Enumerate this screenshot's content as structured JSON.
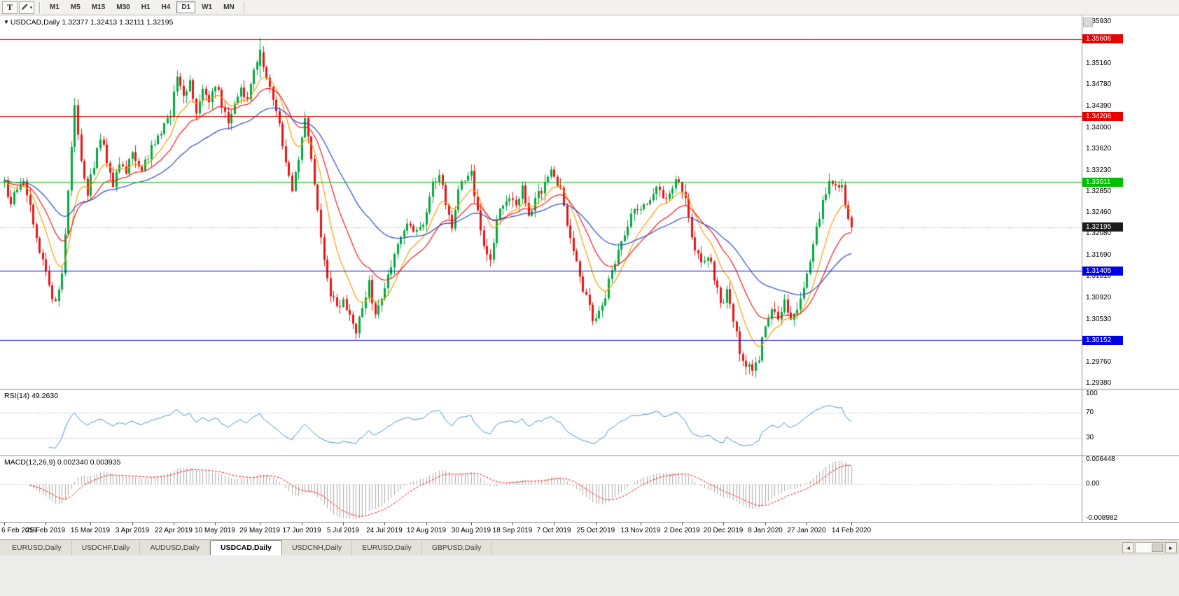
{
  "toolbar": {
    "text_tool_label": "T",
    "draw_tool_caret": "▾",
    "timeframes": [
      "M1",
      "M5",
      "M15",
      "M30",
      "H1",
      "H4",
      "D1",
      "W1",
      "MN"
    ],
    "active_timeframe": "D1"
  },
  "chart": {
    "collapse_arrow": "▼",
    "title": "USDCAD,Daily 1.32377 1.32413 1.32111 1.32195",
    "symbol": "USDCAD",
    "period": "Daily"
  },
  "indicators": {
    "rsi_label": "RSI(14) 49.2630",
    "macd_label": "MACD(12,26,9) 0.002340 0.003935"
  },
  "tabs": {
    "items": [
      "EURUSD,Daily",
      "USDCHF,Daily",
      "AUDUSD,Daily",
      "USDCAD,Daily",
      "USDCNH,Daily",
      "EURUSD,Daily",
      "GBPUSD,Daily"
    ],
    "active_index": 3
  },
  "scrollbar": {
    "left_arrow": "◄",
    "right_arrow": "►"
  },
  "chart_data": {
    "type": "candlestick",
    "symbol": "USDCAD",
    "timeframe": "Daily",
    "ohlc_current": {
      "open": 1.32377,
      "high": 1.32413,
      "low": 1.32111,
      "close": 1.32195
    },
    "ylim": [
      1.29266,
      1.36019
    ],
    "seed": 20,
    "num_candles": 266,
    "candle_spacing": 4.566,
    "price_axis_ticks": [
      "1.35930",
      "1.35160",
      "1.34780",
      "1.34390",
      "1.34000",
      "1.33620",
      "1.33230",
      "1.32850",
      "1.32460",
      "1.32080",
      "1.31690",
      "1.31310",
      "1.30920",
      "1.30530",
      "1.29760",
      "1.29380"
    ],
    "levels": [
      {
        "label": "1.35606",
        "value": 1.35606,
        "color": "#e60000",
        "type": "resistance"
      },
      {
        "label": "1.34206",
        "value": 1.34206,
        "color": "#e60000",
        "type": "resistance"
      },
      {
        "label": "1.33011",
        "value": 1.33011,
        "color": "#00bf00",
        "type": "resistance"
      },
      {
        "label": "1.31405",
        "value": 1.31405,
        "color": "#0000e6",
        "type": "support"
      },
      {
        "label": "1.30152",
        "value": 1.30152,
        "color": "#0000e6",
        "type": "support"
      }
    ],
    "current_price": {
      "label": "1.32195",
      "value": 1.32195
    },
    "x_axis": {
      "labels": [
        {
          "day": 0,
          "text": "6 Feb 2019"
        },
        {
          "day": 13,
          "text": "25 Feb 2019"
        },
        {
          "day": 27,
          "text": "15 Mar 2019"
        },
        {
          "day": 40,
          "text": "3 Apr 2019"
        },
        {
          "day": 53,
          "text": "22 Apr 2019"
        },
        {
          "day": 66,
          "text": "10 May 2019"
        },
        {
          "day": 80,
          "text": "29 May 2019"
        },
        {
          "day": 93,
          "text": "17 Jun 2019"
        },
        {
          "day": 106,
          "text": "5 Jul 2019"
        },
        {
          "day": 119,
          "text": "24 Jul 2019"
        },
        {
          "day": 132,
          "text": "12 Aug 2019"
        },
        {
          "day": 146,
          "text": "30 Aug 2019"
        },
        {
          "day": 159,
          "text": "18 Sep 2019"
        },
        {
          "day": 172,
          "text": "7 Oct 2019"
        },
        {
          "day": 185,
          "text": "25 Oct 2019"
        },
        {
          "day": 199,
          "text": "13 Nov 2019"
        },
        {
          "day": 212,
          "text": "2 Dec 2019"
        },
        {
          "day": 225,
          "text": "20 Dec 2019"
        },
        {
          "day": 238,
          "text": "8 Jan 2020"
        },
        {
          "day": 251,
          "text": "27 Jan 2020"
        },
        {
          "day": 265,
          "text": "14 Feb 2020"
        }
      ]
    },
    "price_path_keypoints": [
      [
        0,
        1.33
      ],
      [
        2,
        1.3257
      ],
      [
        4,
        1.3292
      ],
      [
        6,
        1.331
      ],
      [
        8,
        1.3252
      ],
      [
        10,
        1.3205
      ],
      [
        12,
        1.3155
      ],
      [
        14,
        1.3112
      ],
      [
        16,
        1.3085
      ],
      [
        18,
        1.3128
      ],
      [
        20,
        1.3282
      ],
      [
        22,
        1.344
      ],
      [
        24,
        1.3332
      ],
      [
        26,
        1.3282
      ],
      [
        28,
        1.333
      ],
      [
        30,
        1.3378
      ],
      [
        32,
        1.3342
      ],
      [
        34,
        1.3296
      ],
      [
        36,
        1.3342
      ],
      [
        38,
        1.332
      ],
      [
        40,
        1.3356
      ],
      [
        43,
        1.3322
      ],
      [
        46,
        1.336
      ],
      [
        49,
        1.3388
      ],
      [
        52,
        1.3425
      ],
      [
        54,
        1.3498
      ],
      [
        56,
        1.3452
      ],
      [
        58,
        1.3478
      ],
      [
        60,
        1.3422
      ],
      [
        62,
        1.3465
      ],
      [
        64,
        1.344
      ],
      [
        66,
        1.3476
      ],
      [
        68,
        1.3442
      ],
      [
        70,
        1.3402
      ],
      [
        72,
        1.3442
      ],
      [
        74,
        1.348
      ],
      [
        76,
        1.3444
      ],
      [
        78,
        1.3502
      ],
      [
        80,
        1.354
      ],
      [
        82,
        1.3492
      ],
      [
        84,
        1.3442
      ],
      [
        86,
        1.34
      ],
      [
        88,
        1.333
      ],
      [
        90,
        1.3285
      ],
      [
        92,
        1.3342
      ],
      [
        94,
        1.3418
      ],
      [
        96,
        1.3352
      ],
      [
        98,
        1.3252
      ],
      [
        100,
        1.3152
      ],
      [
        102,
        1.3102
      ],
      [
        104,
        1.3072
      ],
      [
        106,
        1.3092
      ],
      [
        108,
        1.3052
      ],
      [
        110,
        1.3032
      ],
      [
        112,
        1.3082
      ],
      [
        114,
        1.3118
      ],
      [
        116,
        1.3062
      ],
      [
        118,
        1.3098
      ],
      [
        120,
        1.3138
      ],
      [
        123,
        1.3188
      ],
      [
        126,
        1.3228
      ],
      [
        129,
        1.3208
      ],
      [
        132,
        1.3238
      ],
      [
        134,
        1.3298
      ],
      [
        136,
        1.3318
      ],
      [
        138,
        1.3258
      ],
      [
        140,
        1.3222
      ],
      [
        142,
        1.3288
      ],
      [
        144,
        1.3308
      ],
      [
        146,
        1.3328
      ],
      [
        148,
        1.3242
      ],
      [
        150,
        1.3182
      ],
      [
        152,
        1.3158
      ],
      [
        154,
        1.3228
      ],
      [
        156,
        1.3268
      ],
      [
        158,
        1.3272
      ],
      [
        160,
        1.3252
      ],
      [
        162,
        1.3288
      ],
      [
        164,
        1.3248
      ],
      [
        166,
        1.3268
      ],
      [
        168,
        1.3288
      ],
      [
        170,
        1.3318
      ],
      [
        172,
        1.3318
      ],
      [
        174,
        1.3288
      ],
      [
        176,
        1.3228
      ],
      [
        178,
        1.3178
      ],
      [
        180,
        1.3128
      ],
      [
        182,
        1.3088
      ],
      [
        184,
        1.3058
      ],
      [
        186,
        1.3068
      ],
      [
        188,
        1.3098
      ],
      [
        190,
        1.3138
      ],
      [
        192,
        1.3178
      ],
      [
        194,
        1.3208
      ],
      [
        196,
        1.3238
      ],
      [
        198,
        1.3248
      ],
      [
        200,
        1.3258
      ],
      [
        202,
        1.3278
      ],
      [
        204,
        1.3288
      ],
      [
        206,
        1.3268
      ],
      [
        208,
        1.3288
      ],
      [
        210,
        1.3298
      ],
      [
        212,
        1.3288
      ],
      [
        214,
        1.3238
      ],
      [
        216,
        1.3178
      ],
      [
        218,
        1.3158
      ],
      [
        220,
        1.3168
      ],
      [
        222,
        1.3128
      ],
      [
        224,
        1.3078
      ],
      [
        226,
        1.3098
      ],
      [
        228,
        1.3058
      ],
      [
        230,
        1.2998
      ],
      [
        232,
        1.2968
      ],
      [
        234,
        1.2962
      ],
      [
        236,
        1.2986
      ],
      [
        238,
        1.3038
      ],
      [
        240,
        1.3068
      ],
      [
        242,
        1.3058
      ],
      [
        244,
        1.3088
      ],
      [
        246,
        1.3048
      ],
      [
        248,
        1.3078
      ],
      [
        250,
        1.3108
      ],
      [
        252,
        1.3158
      ],
      [
        254,
        1.3218
      ],
      [
        256,
        1.3268
      ],
      [
        258,
        1.3308
      ],
      [
        260,
        1.3298
      ],
      [
        262,
        1.3288
      ],
      [
        263,
        1.3268
      ],
      [
        264,
        1.3242
      ],
      [
        265,
        1.32195
      ]
    ],
    "candle_overrides": [
      {
        "i": 80,
        "o": 1.3512,
        "h": 1.3563,
        "l": 1.3489,
        "c": 1.3541
      },
      {
        "i": 110,
        "l": 1.3016
      },
      {
        "i": 232,
        "l": 1.2952
      },
      {
        "i": 265,
        "o": 1.32377,
        "h": 1.32413,
        "l": 1.32111,
        "c": 1.32195
      }
    ],
    "moving_averages": [
      {
        "period": 10,
        "color": "#ff9c00"
      },
      {
        "period": 21,
        "color": "#ff1414"
      },
      {
        "period": 45,
        "color": "#2746cf"
      }
    ],
    "rsi": {
      "period": 14,
      "current": 49.263,
      "color": "#4691ce",
      "ylim": [
        3,
        105
      ],
      "level_lines": [
        70,
        30
      ],
      "axis_ticks": [
        {
          "v": 100,
          "text": "100"
        },
        {
          "v": 70,
          "text": "70"
        },
        {
          "v": 30,
          "text": "30"
        }
      ]
    },
    "macd": {
      "fast": 12,
      "slow": 26,
      "signal_period": 9,
      "macd_current": 0.00234,
      "signal_current": 0.003935,
      "ylim": [
        -0.00975,
        0.0072
      ],
      "axis_ticks": [
        {
          "v": 0.006448,
          "text": "0.006448"
        },
        {
          "v": 0,
          "text": "0.00"
        },
        {
          "v": -0.008982,
          "text": "-0.008982"
        }
      ]
    },
    "colors": {
      "up": "#00a83e",
      "down": "#e51414",
      "current_line": "#9a9a9a",
      "macd_bar": "#ababab",
      "macd_signal": "#ff0000",
      "rsi": "#4691ce",
      "badge_black": "#1c1c1c",
      "background": "#ffffff"
    }
  }
}
